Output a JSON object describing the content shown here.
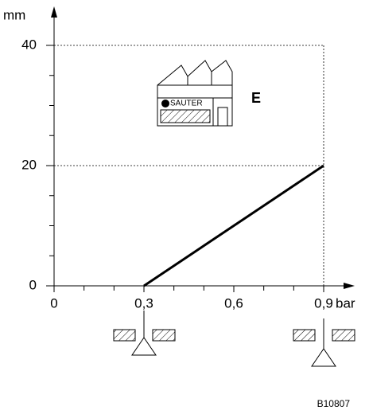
{
  "chart_data": {
    "type": "line",
    "y_label": "mm",
    "x_label": "bar",
    "annotation": "E",
    "logo_text": "SAUTER",
    "figure_code": "B10807",
    "xlim": [
      0,
      0.9
    ],
    "ylim": [
      0,
      40
    ],
    "xticks": [
      0,
      {
        "value": 0.3,
        "label": "0,3"
      },
      {
        "value": 0.6,
        "label": "0,6"
      },
      {
        "value": 0.9,
        "label": "0,9"
      }
    ],
    "yticks": [
      0,
      20,
      40
    ],
    "minor_xticks": [
      0.1,
      0.2,
      0.4,
      0.5,
      0.7,
      0.8
    ],
    "minor_yticks": [
      5,
      10,
      15,
      25,
      30,
      35
    ],
    "grid": "y",
    "series": [
      {
        "x": [
          0.3,
          0.9
        ],
        "values": [
          0,
          20
        ],
        "color": "#000000"
      }
    ]
  }
}
